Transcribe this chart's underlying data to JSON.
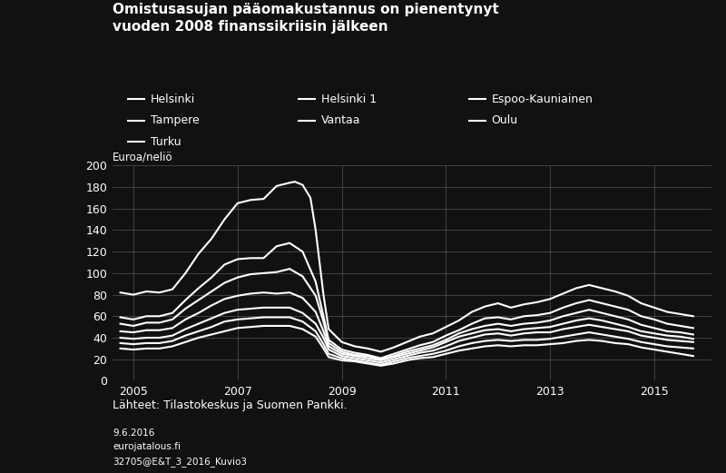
{
  "title": "Omistusasujan pääomakustannus on pienentynyt\nvuoden 2008 finanssikriisin jälkeen",
  "ylabel": "Euroa/neliö",
  "source": "Lähteet: Tilastokeskus ja Suomen Pankki.",
  "footnote1": "9.6.2016",
  "footnote2": "eurojatalous.fi",
  "footnote3": "32705@E&T_3_2016_Kuvio3",
  "background_color": "#111111",
  "text_color": "#ffffff",
  "grid_color": "#555555",
  "line_color": "#ffffff",
  "ylim": [
    0,
    200
  ],
  "xlim": [
    2004.6,
    2016.1
  ],
  "xticks": [
    2005,
    2007,
    2009,
    2011,
    2013,
    2015
  ],
  "yticks": [
    0,
    20,
    40,
    60,
    80,
    100,
    120,
    140,
    160,
    180,
    200
  ],
  "legend_rows": [
    [
      [
        "Helsinki",
        0.175
      ],
      [
        "Helsinki 1",
        0.41
      ],
      [
        "Espoo-Kauniainen",
        0.64
      ]
    ],
    [
      [
        "Tampere",
        0.175
      ],
      [
        "Vantaa",
        0.41
      ],
      [
        "Oulu",
        0.64
      ]
    ],
    [
      [
        "Turku",
        0.175
      ]
    ]
  ],
  "series": {
    "Helsinki_1": {
      "x": [
        2004.75,
        2005.0,
        2005.25,
        2005.5,
        2005.75,
        2006.0,
        2006.25,
        2006.5,
        2006.75,
        2007.0,
        2007.25,
        2007.5,
        2007.75,
        2008.0,
        2008.1,
        2008.25,
        2008.4,
        2008.5,
        2008.65,
        2008.75,
        2009.0,
        2009.25,
        2009.5,
        2009.75,
        2010.0,
        2010.25,
        2010.5,
        2010.75,
        2011.0,
        2011.25,
        2011.5,
        2011.75,
        2012.0,
        2012.25,
        2012.5,
        2012.75,
        2013.0,
        2013.25,
        2013.5,
        2013.75,
        2014.0,
        2014.25,
        2014.5,
        2014.75,
        2015.0,
        2015.25,
        2015.5,
        2015.75
      ],
      "y": [
        82,
        80,
        83,
        82,
        85,
        100,
        118,
        132,
        150,
        165,
        168,
        169,
        181,
        184,
        185,
        182,
        170,
        140,
        80,
        48,
        36,
        32,
        30,
        27,
        31,
        36,
        41,
        44,
        50,
        56,
        64,
        69,
        72,
        68,
        71,
        73,
        76,
        81,
        86,
        89,
        86,
        83,
        79,
        72,
        68,
        64,
        62,
        60
      ]
    },
    "Helsinki": {
      "x": [
        2004.75,
        2005.0,
        2005.25,
        2005.5,
        2005.75,
        2006.0,
        2006.25,
        2006.5,
        2006.75,
        2007.0,
        2007.25,
        2007.5,
        2007.75,
        2008.0,
        2008.25,
        2008.5,
        2008.65,
        2008.75,
        2009.0,
        2009.25,
        2009.5,
        2009.75,
        2010.0,
        2010.25,
        2010.5,
        2010.75,
        2011.0,
        2011.25,
        2011.5,
        2011.75,
        2012.0,
        2012.25,
        2012.5,
        2012.75,
        2013.0,
        2013.25,
        2013.5,
        2013.75,
        2014.0,
        2014.25,
        2014.5,
        2014.75,
        2015.0,
        2015.25,
        2015.5,
        2015.75
      ],
      "y": [
        59,
        57,
        60,
        60,
        63,
        75,
        86,
        96,
        108,
        113,
        114,
        114,
        125,
        128,
        120,
        92,
        60,
        38,
        29,
        26,
        24,
        21,
        25,
        29,
        33,
        36,
        42,
        47,
        53,
        58,
        59,
        57,
        60,
        61,
        63,
        68,
        72,
        75,
        72,
        69,
        66,
        60,
        57,
        53,
        51,
        49
      ]
    },
    "Espoo_Kauniainen": {
      "x": [
        2004.75,
        2005.0,
        2005.25,
        2005.5,
        2005.75,
        2006.0,
        2006.25,
        2006.5,
        2006.75,
        2007.0,
        2007.25,
        2007.5,
        2007.75,
        2008.0,
        2008.25,
        2008.5,
        2008.65,
        2008.75,
        2009.0,
        2009.25,
        2009.5,
        2009.75,
        2010.0,
        2010.25,
        2010.5,
        2010.75,
        2011.0,
        2011.25,
        2011.5,
        2011.75,
        2012.0,
        2012.25,
        2012.5,
        2012.75,
        2013.0,
        2013.25,
        2013.5,
        2013.75,
        2014.0,
        2014.25,
        2014.5,
        2014.75,
        2015.0,
        2015.25,
        2015.5,
        2015.75
      ],
      "y": [
        53,
        51,
        54,
        54,
        57,
        67,
        75,
        83,
        91,
        96,
        99,
        100,
        101,
        104,
        97,
        79,
        55,
        35,
        27,
        24,
        23,
        20,
        23,
        27,
        30,
        33,
        38,
        44,
        48,
        51,
        53,
        51,
        53,
        54,
        56,
        60,
        63,
        66,
        63,
        60,
        57,
        52,
        49,
        46,
        45,
        43
      ]
    },
    "Vantaa": {
      "x": [
        2004.75,
        2005.0,
        2005.25,
        2005.5,
        2005.75,
        2006.0,
        2006.25,
        2006.5,
        2006.75,
        2007.0,
        2007.25,
        2007.5,
        2007.75,
        2008.0,
        2008.25,
        2008.5,
        2008.65,
        2008.75,
        2009.0,
        2009.25,
        2009.5,
        2009.75,
        2010.0,
        2010.25,
        2010.5,
        2010.75,
        2011.0,
        2011.25,
        2011.5,
        2011.75,
        2012.0,
        2012.25,
        2012.5,
        2012.75,
        2013.0,
        2013.25,
        2013.5,
        2013.75,
        2014.0,
        2014.25,
        2014.5,
        2014.75,
        2015.0,
        2015.25,
        2015.5,
        2015.75
      ],
      "y": [
        46,
        45,
        47,
        47,
        49,
        57,
        63,
        70,
        76,
        79,
        81,
        82,
        81,
        82,
        77,
        64,
        46,
        32,
        25,
        23,
        21,
        19,
        22,
        25,
        28,
        31,
        36,
        41,
        44,
        47,
        48,
        46,
        48,
        49,
        50,
        53,
        56,
        58,
        56,
        53,
        50,
        46,
        44,
        42,
        41,
        39
      ]
    },
    "Tampere": {
      "x": [
        2004.75,
        2005.0,
        2005.25,
        2005.5,
        2005.75,
        2006.0,
        2006.25,
        2006.5,
        2006.75,
        2007.0,
        2007.25,
        2007.5,
        2007.75,
        2008.0,
        2008.25,
        2008.5,
        2008.65,
        2008.75,
        2009.0,
        2009.25,
        2009.5,
        2009.75,
        2010.0,
        2010.25,
        2010.5,
        2010.75,
        2011.0,
        2011.25,
        2011.5,
        2011.75,
        2012.0,
        2012.25,
        2012.5,
        2012.75,
        2013.0,
        2013.25,
        2013.5,
        2013.75,
        2014.0,
        2014.25,
        2014.5,
        2014.75,
        2015.0,
        2015.25,
        2015.5,
        2015.75
      ],
      "y": [
        40,
        39,
        40,
        40,
        42,
        48,
        53,
        58,
        63,
        66,
        67,
        68,
        68,
        68,
        63,
        53,
        40,
        29,
        23,
        21,
        19,
        17,
        20,
        23,
        26,
        28,
        32,
        37,
        40,
        43,
        44,
        42,
        44,
        45,
        45,
        48,
        50,
        52,
        50,
        48,
        46,
        42,
        40,
        38,
        37,
        36
      ]
    },
    "Turku": {
      "x": [
        2004.75,
        2005.0,
        2005.25,
        2005.5,
        2005.75,
        2006.0,
        2006.25,
        2006.5,
        2006.75,
        2007.0,
        2007.25,
        2007.5,
        2007.75,
        2008.0,
        2008.25,
        2008.5,
        2008.65,
        2008.75,
        2009.0,
        2009.25,
        2009.5,
        2009.75,
        2010.0,
        2010.25,
        2010.5,
        2010.75,
        2011.0,
        2011.25,
        2011.5,
        2011.75,
        2012.0,
        2012.25,
        2012.5,
        2012.75,
        2013.0,
        2013.25,
        2013.5,
        2013.75,
        2014.0,
        2014.25,
        2014.5,
        2014.75,
        2015.0,
        2015.25,
        2015.5,
        2015.75
      ],
      "y": [
        35,
        34,
        35,
        35,
        37,
        42,
        46,
        50,
        55,
        57,
        58,
        59,
        59,
        59,
        55,
        46,
        34,
        25,
        21,
        19,
        17,
        15,
        18,
        21,
        23,
        25,
        28,
        32,
        35,
        37,
        38,
        37,
        38,
        38,
        39,
        41,
        43,
        45,
        43,
        41,
        39,
        36,
        34,
        32,
        31,
        30
      ]
    },
    "Oulu": {
      "x": [
        2004.75,
        2005.0,
        2005.25,
        2005.5,
        2005.75,
        2006.0,
        2006.25,
        2006.5,
        2006.75,
        2007.0,
        2007.25,
        2007.5,
        2007.75,
        2008.0,
        2008.25,
        2008.5,
        2008.65,
        2008.75,
        2009.0,
        2009.25,
        2009.5,
        2009.75,
        2010.0,
        2010.25,
        2010.5,
        2010.75,
        2011.0,
        2011.25,
        2011.5,
        2011.75,
        2012.0,
        2012.25,
        2012.5,
        2012.75,
        2013.0,
        2013.25,
        2013.5,
        2013.75,
        2014.0,
        2014.25,
        2014.5,
        2014.75,
        2015.0,
        2015.25,
        2015.5,
        2015.75
      ],
      "y": [
        30,
        29,
        30,
        30,
        32,
        36,
        40,
        43,
        46,
        49,
        50,
        51,
        51,
        51,
        48,
        41,
        30,
        22,
        19,
        18,
        16,
        14,
        16,
        19,
        21,
        22,
        25,
        28,
        30,
        32,
        33,
        32,
        33,
        33,
        34,
        35,
        37,
        38,
        37,
        35,
        34,
        31,
        29,
        27,
        25,
        23
      ]
    }
  }
}
